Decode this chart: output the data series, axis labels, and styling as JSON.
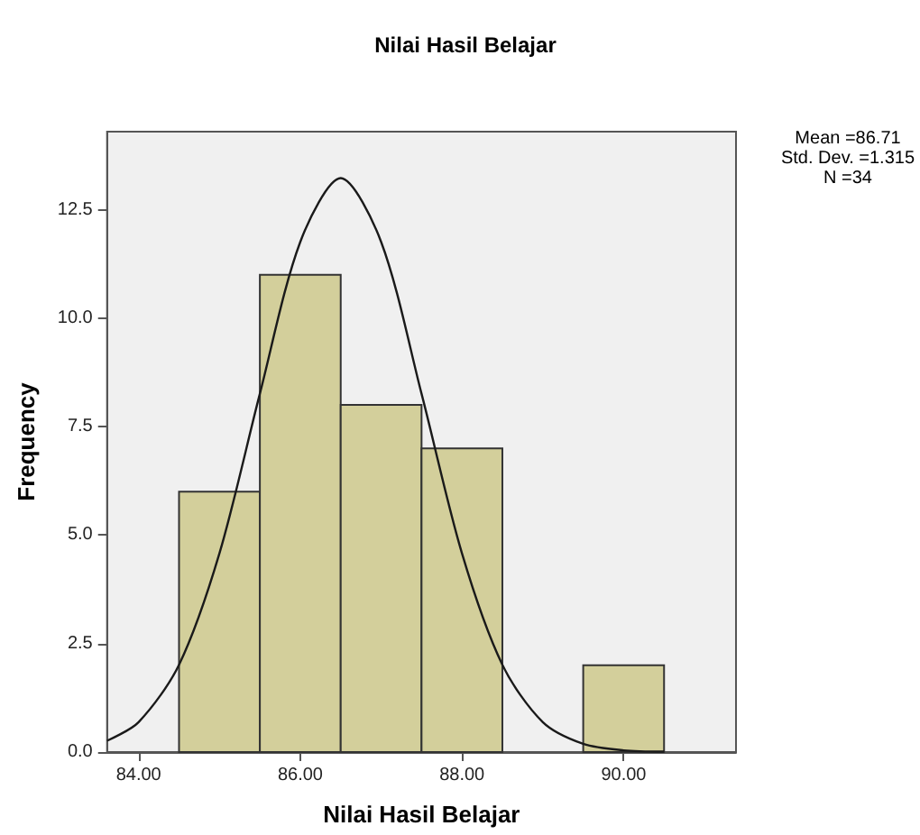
{
  "chart_data": {
    "type": "histogram",
    "title": "Nilai Hasil Belajar",
    "xlabel": "Nilai Hasil Belajar",
    "ylabel": "Frequency",
    "bins": [
      84.5,
      85.5,
      86.5,
      87.5,
      88.5,
      89.5,
      90.5
    ],
    "values": [
      6,
      11,
      8,
      7,
      0,
      2
    ],
    "color": "#d3cf9b",
    "series": [
      {
        "type": "line",
        "color": "#1a1a1a",
        "x": [
          83.61,
          84.0,
          84.5,
          85.0,
          85.5,
          86.0,
          86.5,
          87.0,
          87.5,
          88.0,
          88.5,
          89.0,
          89.5,
          90.0,
          90.5
        ],
        "values": [
          0.26,
          0.69,
          2.01,
          4.58,
          8.26,
          11.76,
          13.23,
          11.76,
          8.26,
          4.58,
          2.01,
          0.69,
          0.19,
          0.04,
          0.01
        ]
      }
    ],
    "xlim": [
      83.61,
      91.39
    ],
    "xticks": [
      {
        "value": 84,
        "label": "84.00"
      },
      {
        "value": 86,
        "label": "86.00"
      },
      {
        "value": 88,
        "label": "88.00"
      },
      {
        "value": 90,
        "label": "90.00"
      }
    ],
    "ylim": [
      0,
      14.3
    ],
    "yticks": [
      {
        "value": 0,
        "label": "0.0"
      },
      {
        "value": 2.5,
        "label": "2.5"
      },
      {
        "value": 5,
        "label": "5.0"
      },
      {
        "value": 7.5,
        "label": "7.5"
      },
      {
        "value": 10,
        "label": "10.0"
      },
      {
        "value": 12.5,
        "label": "12.5"
      }
    ],
    "grid": false,
    "marker": "none",
    "annotations": [
      "Mean =86.71",
      "Std. Dev. =1.315",
      "N =34"
    ]
  }
}
